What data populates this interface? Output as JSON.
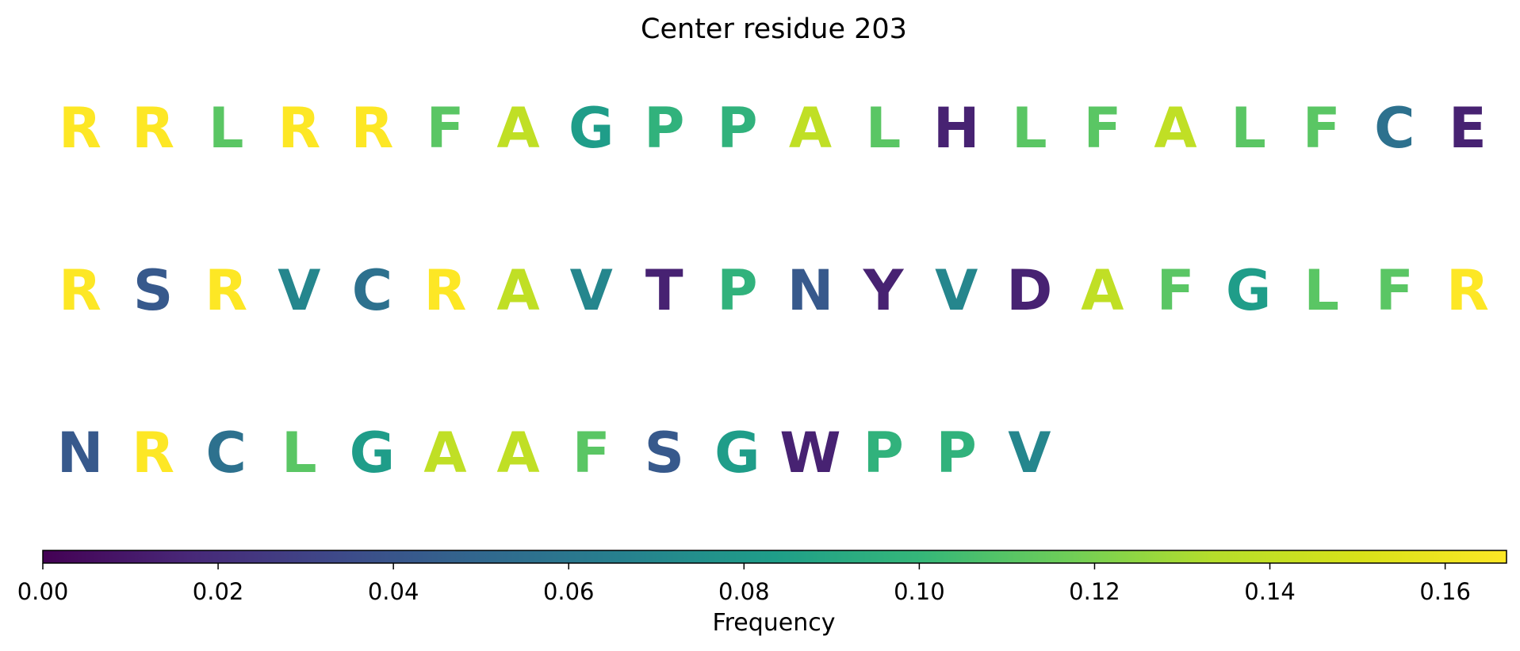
{
  "chart_data": {
    "type": "heatmap",
    "title": "Center residue 203",
    "colormap": "viridis",
    "residues": [
      {
        "letter": "R",
        "value": 0.167
      },
      {
        "letter": "R",
        "value": 0.167
      },
      {
        "letter": "L",
        "value": 0.111
      },
      {
        "letter": "R",
        "value": 0.167
      },
      {
        "letter": "R",
        "value": 0.167
      },
      {
        "letter": "F",
        "value": 0.111
      },
      {
        "letter": "A",
        "value": 0.139
      },
      {
        "letter": "G",
        "value": 0.083
      },
      {
        "letter": "P",
        "value": 0.097
      },
      {
        "letter": "P",
        "value": 0.097
      },
      {
        "letter": "A",
        "value": 0.139
      },
      {
        "letter": "L",
        "value": 0.111
      },
      {
        "letter": "H",
        "value": 0.014
      },
      {
        "letter": "L",
        "value": 0.111
      },
      {
        "letter": "F",
        "value": 0.111
      },
      {
        "letter": "A",
        "value": 0.139
      },
      {
        "letter": "L",
        "value": 0.111
      },
      {
        "letter": "F",
        "value": 0.111
      },
      {
        "letter": "C",
        "value": 0.056
      },
      {
        "letter": "E",
        "value": 0.014
      },
      {
        "letter": "R",
        "value": 0.167
      },
      {
        "letter": "S",
        "value": 0.042
      },
      {
        "letter": "R",
        "value": 0.167
      },
      {
        "letter": "V",
        "value": 0.069
      },
      {
        "letter": "C",
        "value": 0.056
      },
      {
        "letter": "R",
        "value": 0.167
      },
      {
        "letter": "A",
        "value": 0.139
      },
      {
        "letter": "V",
        "value": 0.069
      },
      {
        "letter": "T",
        "value": 0.014
      },
      {
        "letter": "P",
        "value": 0.097
      },
      {
        "letter": "N",
        "value": 0.042
      },
      {
        "letter": "Y",
        "value": 0.014
      },
      {
        "letter": "V",
        "value": 0.069
      },
      {
        "letter": "D",
        "value": 0.014
      },
      {
        "letter": "A",
        "value": 0.139
      },
      {
        "letter": "F",
        "value": 0.111
      },
      {
        "letter": "G",
        "value": 0.083
      },
      {
        "letter": "L",
        "value": 0.111
      },
      {
        "letter": "F",
        "value": 0.111
      },
      {
        "letter": "R",
        "value": 0.167
      },
      {
        "letter": "N",
        "value": 0.042
      },
      {
        "letter": "R",
        "value": 0.167
      },
      {
        "letter": "C",
        "value": 0.056
      },
      {
        "letter": "L",
        "value": 0.111
      },
      {
        "letter": "G",
        "value": 0.083
      },
      {
        "letter": "A",
        "value": 0.139
      },
      {
        "letter": "A",
        "value": 0.139
      },
      {
        "letter": "F",
        "value": 0.111
      },
      {
        "letter": "S",
        "value": 0.042
      },
      {
        "letter": "G",
        "value": 0.083
      },
      {
        "letter": "W",
        "value": 0.014
      },
      {
        "letter": "P",
        "value": 0.097
      },
      {
        "letter": "P",
        "value": 0.097
      },
      {
        "letter": "V",
        "value": 0.069
      }
    ],
    "colorbar": {
      "label": "Frequency",
      "range": [
        0,
        0.167
      ],
      "orientation": "horizontal",
      "ticks": [
        {
          "value": 0.0,
          "label": "0.00"
        },
        {
          "value": 0.02,
          "label": "0.02"
        },
        {
          "value": 0.04,
          "label": "0.04"
        },
        {
          "value": 0.06,
          "label": "0.06"
        },
        {
          "value": 0.08,
          "label": "0.08"
        },
        {
          "value": 0.1,
          "label": "0.10"
        },
        {
          "value": 0.12,
          "label": "0.12"
        },
        {
          "value": 0.14,
          "label": "0.14"
        },
        {
          "value": 0.16,
          "label": "0.16"
        }
      ]
    }
  }
}
